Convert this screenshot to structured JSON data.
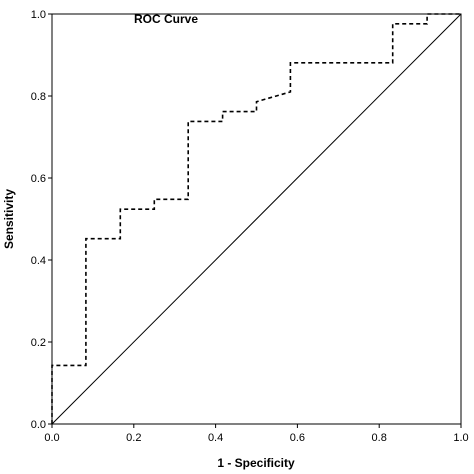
{
  "chart_data": {
    "type": "line",
    "title": "ROC Curve",
    "xlabel": "1 - Specificity",
    "ylabel": "Sensitivity",
    "xlim": [
      0,
      1
    ],
    "ylim": [
      0,
      1
    ],
    "x_ticks": [
      "0.0",
      "0.2",
      "0.4",
      "0.6",
      "0.8",
      "1.0"
    ],
    "y_ticks": [
      "0.0",
      "0.2",
      "0.4",
      "0.6",
      "0.8",
      "1.0"
    ],
    "grid": false,
    "series": [
      {
        "style": "dashed",
        "x": [
          0,
          0,
          0.083,
          0.083,
          0.167,
          0.167,
          0.25,
          0.25,
          0.333,
          0.333,
          0.417,
          0.417,
          0.5,
          0.5,
          0.583,
          0.583,
          0.833,
          0.833,
          0.917,
          0.917,
          1.0
        ],
        "y": [
          0,
          0.143,
          0.143,
          0.452,
          0.452,
          0.524,
          0.524,
          0.548,
          0.548,
          0.738,
          0.738,
          0.762,
          0.762,
          0.786,
          0.81,
          0.881,
          0.881,
          0.976,
          0.976,
          1.0,
          1.0
        ]
      },
      {
        "style": "solid",
        "x": [
          0,
          1
        ],
        "y": [
          0,
          1
        ]
      }
    ]
  }
}
